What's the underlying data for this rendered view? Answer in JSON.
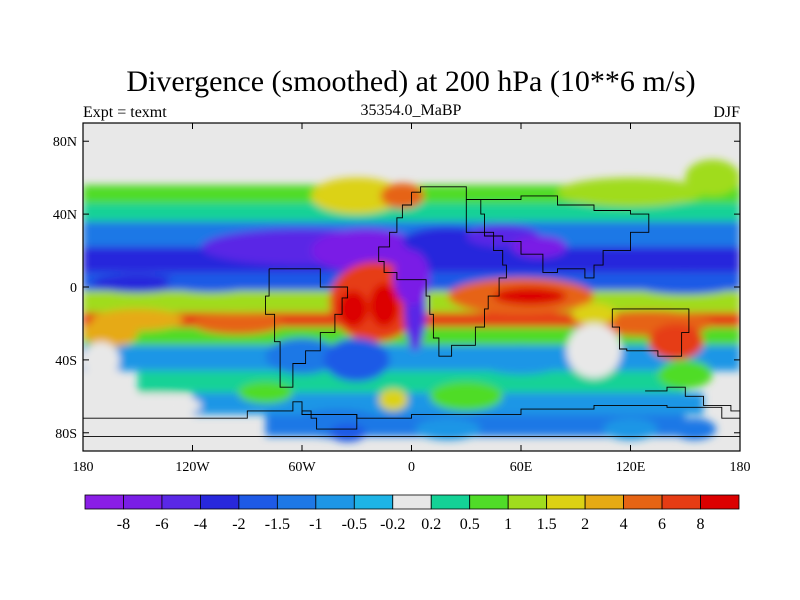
{
  "chart_data": {
    "type": "heatmap",
    "title": "Divergence (smoothed) at 200 hPa (10**6 m/s)",
    "left_label": "Expt = texmt",
    "center_label": "35354.0_MaBP",
    "right_label": "DJF",
    "x_ticks": [
      "180",
      "120W",
      "60W",
      "0",
      "60E",
      "120E",
      "180"
    ],
    "x_values": [
      -180,
      -120,
      -60,
      0,
      60,
      120,
      180
    ],
    "y_ticks": [
      "80N",
      "40N",
      "0",
      "40S",
      "80S"
    ],
    "y_values": [
      80,
      40,
      0,
      -40,
      -80
    ],
    "xlim": [
      -180,
      180
    ],
    "ylim": [
      -90,
      90
    ],
    "colorbar": {
      "labels": [
        "-8",
        "-6",
        "-4",
        "-2",
        "-1.5",
        "-1",
        "-0.5",
        "-0.2",
        "0.2",
        "0.5",
        "1",
        "1.5",
        "2",
        "4",
        "6",
        "8"
      ],
      "colors": [
        "#8a1ee6",
        "#7a1ee6",
        "#5a28e6",
        "#2828dc",
        "#1e5ae6",
        "#1e78e6",
        "#1e96e6",
        "#1eb4e6",
        "#e8e8e8",
        "#14d296",
        "#50dc28",
        "#a0dc1e",
        "#dcd214",
        "#e6aa14",
        "#e66414",
        "#e63c14",
        "#dc0000"
      ]
    }
  }
}
